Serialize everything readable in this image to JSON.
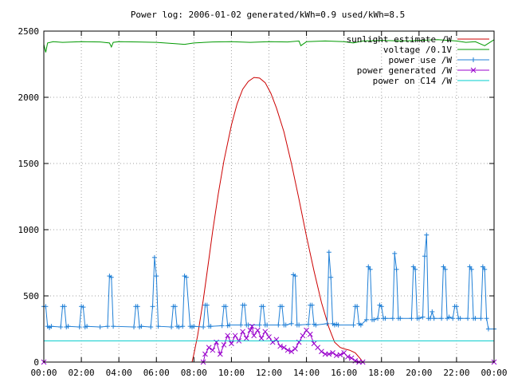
{
  "chart_data": {
    "type": "line",
    "title": "Power log: 2006-01-02 generated/kWh=0.9 used/kWh=8.5",
    "xlabel": "",
    "ylabel": "",
    "xlim": [
      0,
      24
    ],
    "ylim": [
      0,
      2500
    ],
    "grid": true,
    "legend_position": "top-right",
    "x_tick_labels": [
      "00:00",
      "02:00",
      "04:00",
      "06:00",
      "08:00",
      "10:00",
      "12:00",
      "14:00",
      "16:00",
      "18:00",
      "20:00",
      "22:00",
      "00:00"
    ],
    "x_ticks": [
      0,
      2,
      4,
      6,
      8,
      10,
      12,
      14,
      16,
      18,
      20,
      22,
      24
    ],
    "y_ticks": [
      0,
      500,
      1000,
      1500,
      2000,
      2500
    ],
    "series": [
      {
        "name": "sunlight estimate /W",
        "color": "#cc0000",
        "marker": "none",
        "x": [
          0,
          7.9,
          8.0,
          8.2,
          8.5,
          8.8,
          9.0,
          9.3,
          9.6,
          10.0,
          10.3,
          10.6,
          10.9,
          11.2,
          11.5,
          11.8,
          12.1,
          12.4,
          12.8,
          13.2,
          13.6,
          14.0,
          14.4,
          14.8,
          15.2,
          15.5,
          15.8,
          16.0,
          16.3,
          16.6,
          16.9,
          17.0,
          24
        ],
        "y": [
          0,
          0,
          60,
          200,
          470,
          780,
          990,
          1270,
          1520,
          1790,
          1950,
          2060,
          2120,
          2150,
          2145,
          2110,
          2030,
          1920,
          1740,
          1500,
          1230,
          950,
          690,
          450,
          260,
          150,
          110,
          100,
          90,
          70,
          20,
          0,
          0
        ]
      },
      {
        "name": "voltage /0.1V",
        "color": "#009900",
        "marker": "none",
        "x": [
          0,
          0.1,
          0.2,
          0.5,
          1,
          2,
          3,
          3.5,
          3.6,
          3.7,
          4,
          5,
          6,
          7,
          7.5,
          8,
          9,
          10,
          11,
          12,
          13,
          13.6,
          13.7,
          14,
          15,
          16,
          16.5,
          17,
          18,
          19,
          20,
          21,
          22,
          22.5,
          23,
          23.5,
          24
        ],
        "y": [
          2400,
          2340,
          2410,
          2420,
          2415,
          2420,
          2418,
          2410,
          2380,
          2415,
          2420,
          2418,
          2415,
          2405,
          2400,
          2410,
          2418,
          2420,
          2415,
          2420,
          2418,
          2425,
          2390,
          2420,
          2425,
          2420,
          2410,
          2425,
          2430,
          2425,
          2430,
          2435,
          2425,
          2415,
          2420,
          2390,
          2435
        ]
      },
      {
        "name": "power use /W",
        "color": "#1f7fd6",
        "marker": "plus",
        "x": [
          0,
          0.1,
          0.2,
          0.3,
          0.4,
          0.9,
          1.0,
          1.1,
          1.2,
          1.3,
          1.9,
          2.0,
          2.1,
          2.2,
          2.3,
          3.0,
          3.4,
          3.5,
          3.6,
          3.7,
          4.8,
          4.9,
          5.0,
          5.1,
          5.2,
          5.7,
          5.8,
          5.9,
          6.0,
          6.1,
          6.8,
          6.9,
          7.0,
          7.1,
          7.2,
          7.4,
          7.5,
          7.6,
          7.8,
          7.9,
          8.0,
          8.5,
          8.6,
          8.7,
          8.8,
          8.9,
          9.5,
          9.6,
          9.7,
          9.8,
          9.9,
          10.5,
          10.6,
          10.7,
          10.8,
          10.9,
          11.5,
          11.6,
          11.7,
          11.8,
          11.9,
          12.5,
          12.6,
          12.7,
          12.8,
          12.9,
          13.2,
          13.3,
          13.4,
          13.5,
          13.6,
          14.1,
          14.2,
          14.3,
          14.4,
          14.5,
          15.1,
          15.2,
          15.3,
          15.4,
          15.5,
          15.6,
          15.7,
          16.5,
          16.6,
          16.7,
          16.8,
          16.9,
          17.2,
          17.3,
          17.4,
          17.5,
          17.6,
          17.8,
          17.9,
          18.0,
          18.1,
          18.2,
          18.6,
          18.7,
          18.8,
          18.9,
          19.0,
          19.6,
          19.7,
          19.8,
          19.9,
          20.0,
          20.2,
          20.3,
          20.4,
          20.5,
          20.6,
          20.7,
          20.8,
          21.2,
          21.3,
          21.4,
          21.5,
          21.6,
          21.8,
          21.9,
          22.0,
          22.1,
          22.2,
          22.6,
          22.7,
          22.8,
          22.9,
          23.0,
          23.3,
          23.4,
          23.5,
          23.6,
          23.7,
          24
        ],
        "y": [
          420,
          420,
          270,
          260,
          270,
          265,
          420,
          420,
          265,
          270,
          265,
          420,
          415,
          265,
          270,
          265,
          270,
          650,
          640,
          270,
          265,
          420,
          420,
          265,
          270,
          265,
          420,
          790,
          650,
          270,
          265,
          420,
          420,
          270,
          265,
          270,
          650,
          640,
          270,
          265,
          270,
          265,
          430,
          430,
          270,
          270,
          275,
          420,
          420,
          275,
          280,
          280,
          430,
          430,
          280,
          280,
          280,
          420,
          420,
          280,
          280,
          280,
          420,
          420,
          280,
          280,
          290,
          660,
          650,
          280,
          280,
          285,
          430,
          430,
          285,
          280,
          290,
          830,
          640,
          290,
          280,
          285,
          280,
          280,
          420,
          420,
          290,
          280,
          320,
          720,
          700,
          320,
          320,
          330,
          430,
          420,
          330,
          330,
          330,
          820,
          700,
          330,
          330,
          330,
          720,
          700,
          330,
          330,
          340,
          800,
          960,
          330,
          330,
          380,
          330,
          330,
          720,
          700,
          330,
          340,
          330,
          420,
          420,
          330,
          330,
          330,
          720,
          700,
          330,
          330,
          330,
          720,
          700,
          330,
          250,
          250
        ]
      },
      {
        "name": "power generated /W",
        "color": "#9900cc",
        "marker": "cross",
        "x": [
          0,
          8.5,
          8.6,
          8.8,
          9.0,
          9.2,
          9.4,
          9.6,
          9.8,
          10.0,
          10.2,
          10.4,
          10.6,
          10.8,
          11.0,
          11.1,
          11.2,
          11.4,
          11.6,
          11.8,
          12.0,
          12.2,
          12.4,
          12.6,
          12.8,
          13.0,
          13.2,
          13.4,
          13.6,
          13.8,
          14.0,
          14.2,
          14.4,
          14.6,
          14.8,
          15.0,
          15.2,
          15.4,
          15.6,
          15.8,
          16.0,
          16.2,
          16.4,
          16.6,
          16.8,
          17.0,
          24
        ],
        "y": [
          0,
          0,
          60,
          110,
          90,
          150,
          60,
          130,
          200,
          140,
          200,
          160,
          230,
          180,
          240,
          270,
          200,
          240,
          180,
          230,
          190,
          150,
          170,
          120,
          110,
          90,
          80,
          100,
          150,
          200,
          240,
          210,
          140,
          110,
          80,
          60,
          60,
          70,
          50,
          55,
          70,
          40,
          30,
          10,
          0,
          0,
          0
        ]
      },
      {
        "name": "power on C14 /W",
        "color": "#00cccc",
        "marker": "none",
        "x": [
          0,
          24
        ],
        "y": [
          160,
          160
        ]
      }
    ]
  }
}
